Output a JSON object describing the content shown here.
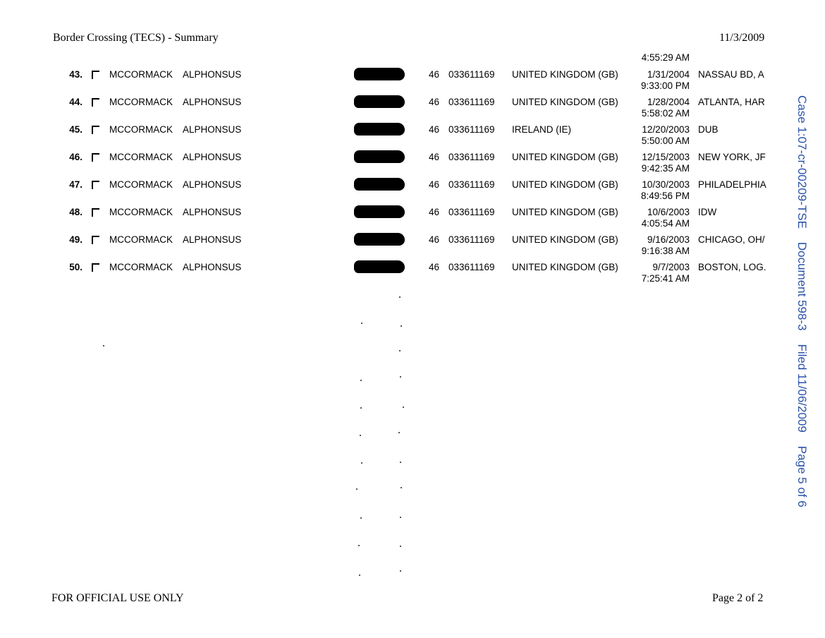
{
  "header": {
    "title": "Border Crossing (TECS) - Summary",
    "date": "11/3/2009"
  },
  "previous_row_time": "4:55:29 AM",
  "rows": [
    {
      "num": "43.",
      "last": "MCCORMACK",
      "first": "ALPHONSUS",
      "code": "46",
      "passport": "033611169",
      "country": "UNITED KINGDOM (GB)",
      "date": "1/31/2004",
      "time": "9:33:00 PM",
      "location": "NASSAU BD, A"
    },
    {
      "num": "44.",
      "last": "MCCORMACK",
      "first": "ALPHONSUS",
      "code": "46",
      "passport": "033611169",
      "country": "UNITED KINGDOM (GB)",
      "date": "1/28/2004",
      "time": "5:58:02 AM",
      "location": "ATLANTA, HAR"
    },
    {
      "num": "45.",
      "last": "MCCORMACK",
      "first": "ALPHONSUS",
      "code": "46",
      "passport": "033611169",
      "country": "IRELAND (IE)",
      "date": "12/20/2003",
      "time": "5:50:00 AM",
      "location": "DUB"
    },
    {
      "num": "46.",
      "last": "MCCORMACK",
      "first": "ALPHONSUS",
      "code": "46",
      "passport": "033611169",
      "country": "UNITED KINGDOM (GB)",
      "date": "12/15/2003",
      "time": "9:42:35 AM",
      "location": "NEW YORK, JF"
    },
    {
      "num": "47.",
      "last": "MCCORMACK",
      "first": "ALPHONSUS",
      "code": "46",
      "passport": "033611169",
      "country": "UNITED KINGDOM (GB)",
      "date": "10/30/2003",
      "time": "8:49:56 PM",
      "location": "PHILADELPHIA"
    },
    {
      "num": "48.",
      "last": "MCCORMACK",
      "first": "ALPHONSUS",
      "code": "46",
      "passport": "033611169",
      "country": "UNITED KINGDOM (GB)",
      "date": "10/6/2003",
      "time": "4:05:54 AM",
      "location": "IDW"
    },
    {
      "num": "49.",
      "last": "MCCORMACK",
      "first": "ALPHONSUS",
      "code": "46",
      "passport": "033611169",
      "country": "UNITED KINGDOM (GB)",
      "date": "9/16/2003",
      "time": "9:16:38 AM",
      "location": "CHICAGO, OH/"
    },
    {
      "num": "50.",
      "last": "MCCORMACK",
      "first": "ALPHONSUS",
      "code": "46",
      "passport": "033611169",
      "country": "UNITED KINGDOM (GB)",
      "date": "9/7/2003",
      "time": "7:25:41 AM",
      "location": "BOSTON, LOG."
    }
  ],
  "footer": {
    "left": "FOR OFFICIAL USE ONLY",
    "right": "Page 2 of 2"
  },
  "court_stamp": {
    "text": "Case 1:07-cr-00209-TSE    Document 598-3    Filed 11/06/2009    Page 5 of 6",
    "color": "#2a52a8"
  }
}
